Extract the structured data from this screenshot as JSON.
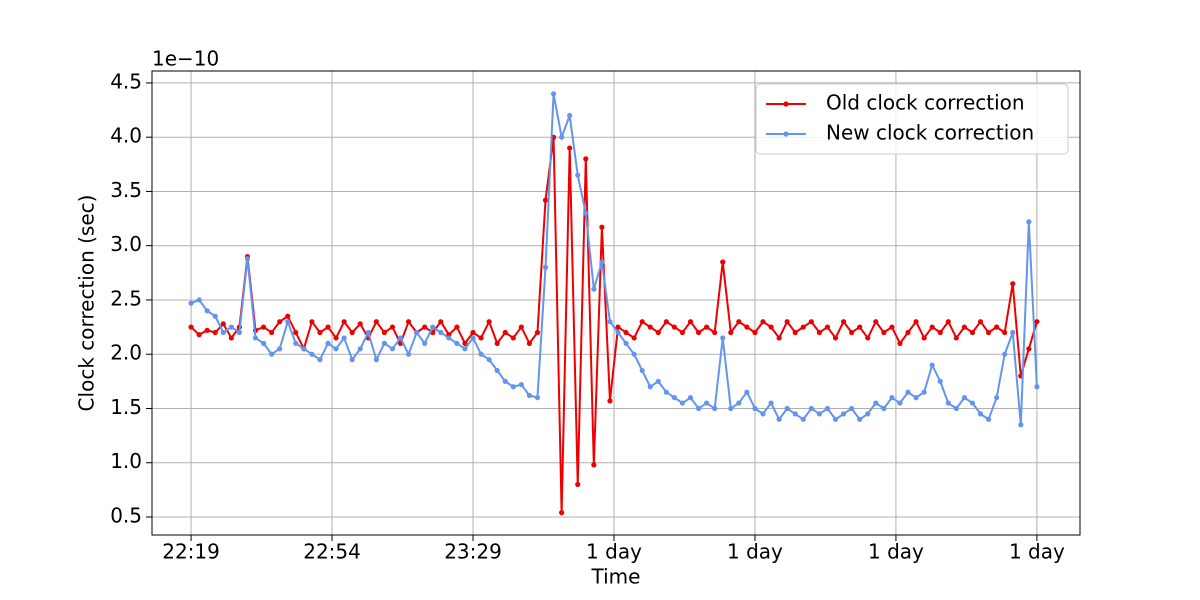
{
  "chart_data": {
    "type": "line",
    "y_offset_label": "1e−10",
    "xlabel": "Time",
    "ylabel": "Clock correction (sec)",
    "x": [
      1339,
      1341,
      1343,
      1345,
      1347,
      1349,
      1351,
      1353,
      1355,
      1357,
      1359,
      1361,
      1363,
      1365,
      1367,
      1369,
      1371,
      1373,
      1375,
      1377,
      1379,
      1381,
      1383,
      1385,
      1387,
      1389,
      1391,
      1393,
      1395,
      1397,
      1399,
      1401,
      1403,
      1405,
      1407,
      1409,
      1411,
      1413,
      1415,
      1417,
      1419,
      1421,
      1423,
      1425,
      1427,
      1429,
      1431,
      1433,
      1435,
      1437,
      1439,
      1441,
      1443,
      1445,
      1447,
      1449,
      1451,
      1453,
      1455,
      1457,
      1459,
      1461,
      1463,
      1465,
      1467,
      1469,
      1471,
      1473,
      1475,
      1477,
      1479,
      1481,
      1483,
      1485,
      1487,
      1489,
      1491,
      1493,
      1495,
      1497,
      1499,
      1501,
      1503,
      1505,
      1507,
      1509,
      1511,
      1513,
      1515,
      1517,
      1519,
      1521,
      1523,
      1525,
      1527,
      1529,
      1531,
      1533,
      1535,
      1537,
      1539,
      1541,
      1543,
      1545,
      1547,
      1549
    ],
    "series": [
      {
        "name": "Old clock correction",
        "color": "#ee0000",
        "values": [
          2.25,
          2.18,
          2.22,
          2.2,
          2.28,
          2.15,
          2.25,
          2.9,
          2.22,
          2.25,
          2.2,
          2.3,
          2.35,
          2.2,
          2.05,
          2.3,
          2.2,
          2.25,
          2.15,
          2.3,
          2.2,
          2.28,
          2.15,
          2.3,
          2.2,
          2.25,
          2.1,
          2.3,
          2.2,
          2.25,
          2.2,
          2.3,
          2.18,
          2.25,
          2.1,
          2.2,
          2.15,
          2.3,
          2.1,
          2.2,
          2.15,
          2.25,
          2.1,
          2.2,
          3.42,
          4.0,
          0.54,
          3.9,
          0.8,
          3.8,
          0.98,
          3.17,
          1.57,
          2.25,
          2.2,
          2.15,
          2.3,
          2.25,
          2.2,
          2.3,
          2.25,
          2.2,
          2.3,
          2.2,
          2.25,
          2.2,
          2.85,
          2.2,
          2.3,
          2.25,
          2.2,
          2.3,
          2.25,
          2.15,
          2.3,
          2.2,
          2.25,
          2.3,
          2.2,
          2.25,
          2.15,
          2.3,
          2.2,
          2.25,
          2.15,
          2.3,
          2.2,
          2.25,
          2.1,
          2.2,
          2.3,
          2.15,
          2.25,
          2.2,
          2.3,
          2.15,
          2.25,
          2.2,
          2.3,
          2.2,
          2.25,
          2.2,
          2.65,
          1.8,
          2.05,
          2.3
        ]
      },
      {
        "name": "New clock correction",
        "color": "#6495ed",
        "values": [
          2.47,
          2.5,
          2.4,
          2.35,
          2.2,
          2.25,
          2.2,
          2.88,
          2.15,
          2.1,
          2.0,
          2.05,
          2.3,
          2.1,
          2.05,
          2.0,
          1.95,
          2.1,
          2.05,
          2.15,
          1.95,
          2.05,
          2.2,
          1.95,
          2.1,
          2.05,
          2.15,
          2.0,
          2.2,
          2.1,
          2.25,
          2.2,
          2.15,
          2.1,
          2.05,
          2.15,
          2.0,
          1.95,
          1.85,
          1.75,
          1.7,
          1.72,
          1.62,
          1.6,
          2.8,
          4.4,
          4.0,
          4.2,
          3.65,
          3.3,
          2.6,
          2.85,
          2.3,
          2.2,
          2.1,
          2.0,
          1.85,
          1.7,
          1.75,
          1.65,
          1.6,
          1.55,
          1.6,
          1.5,
          1.55,
          1.5,
          2.15,
          1.5,
          1.55,
          1.65,
          1.5,
          1.45,
          1.55,
          1.4,
          1.5,
          1.45,
          1.4,
          1.5,
          1.45,
          1.5,
          1.4,
          1.45,
          1.5,
          1.4,
          1.45,
          1.55,
          1.5,
          1.6,
          1.55,
          1.65,
          1.6,
          1.65,
          1.9,
          1.75,
          1.55,
          1.5,
          1.6,
          1.55,
          1.45,
          1.4,
          1.6,
          2.0,
          2.2,
          1.35,
          3.22,
          1.7
        ]
      }
    ],
    "xlim": [
      1329.3,
      1559.7
    ],
    "xticks": [
      {
        "value": 1339,
        "label": "22:19"
      },
      {
        "value": 1374,
        "label": "22:54"
      },
      {
        "value": 1409,
        "label": "23:29"
      },
      {
        "value": 1444,
        "label": "1 day"
      },
      {
        "value": 1479,
        "label": "1 day"
      },
      {
        "value": 1514,
        "label": "1 day"
      },
      {
        "value": 1549,
        "label": "1 day"
      }
    ],
    "ylim": [
      0.334,
      4.61
    ],
    "yticks": [
      0.5,
      {
        "value": 1.0,
        "label": "1.0"
      },
      1.5,
      {
        "value": 2.0,
        "label": "2.0"
      },
      2.5,
      {
        "value": 3.0,
        "label": "3.0"
      },
      3.5,
      {
        "value": 4.0,
        "label": "4.0"
      },
      4.5
    ],
    "grid": true,
    "legend": "upper right"
  }
}
